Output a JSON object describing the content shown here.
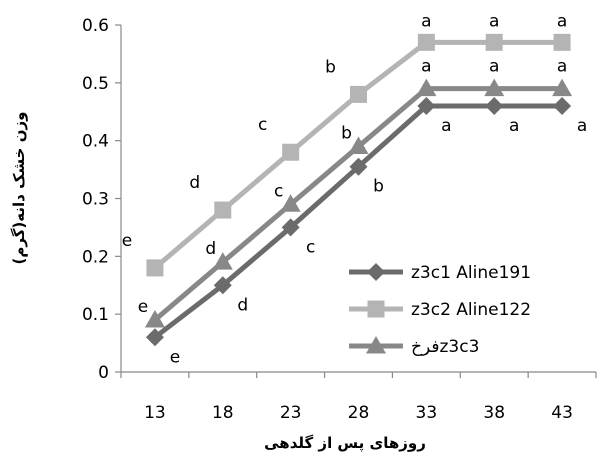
{
  "chart_data": {
    "type": "line",
    "xlabel": "روزهای پس از گلدهی",
    "ylabel": "وزن خشک دانه(گرم)",
    "x": [
      13,
      18,
      23,
      28,
      33,
      38,
      43
    ],
    "ylim": [
      0,
      0.6
    ],
    "yticks": [
      "0",
      "0.1",
      "0.2",
      "0.3",
      "0.4",
      "0.5",
      "0.6"
    ],
    "grid": false,
    "legend_position": "lower-right",
    "series": [
      {
        "name": "z3c1 Aline191",
        "marker": "diamond",
        "color": "#6b6b6b",
        "values": [
          0.06,
          0.15,
          0.25,
          0.355,
          0.46,
          0.46,
          0.46
        ],
        "letters": [
          "e",
          "d",
          "c",
          "b",
          "a",
          "a",
          "a"
        ]
      },
      {
        "name": "z3c2 Aline122",
        "marker": "square",
        "color": "#b4b4b4",
        "values": [
          0.18,
          0.28,
          0.38,
          0.48,
          0.57,
          0.57,
          0.57
        ],
        "letters": [
          "e",
          "d",
          "c",
          "b",
          "a",
          "a",
          "a"
        ]
      },
      {
        "name": "فرخz3c3",
        "marker": "triangle",
        "color": "#888888",
        "values": [
          0.09,
          0.19,
          0.29,
          0.39,
          0.49,
          0.49,
          0.49
        ],
        "letters": [
          "e",
          "d",
          "c",
          "b",
          "a",
          "a",
          "a"
        ]
      }
    ]
  }
}
